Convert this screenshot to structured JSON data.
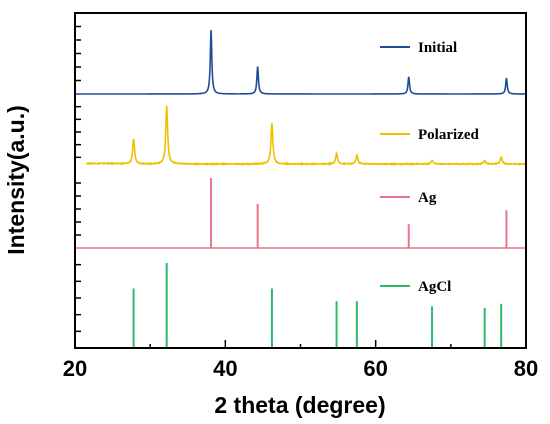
{
  "chart_data": {
    "type": "line",
    "xlabel": "2 theta (degree)",
    "ylabel": "Intensity(a.u.)",
    "xlim": [
      20,
      80
    ],
    "xticks": [
      "20",
      "40",
      "60",
      "80"
    ],
    "legend_placement": "right of each panel",
    "grid": false,
    "panels": [
      {
        "name": "Initial",
        "style": "line",
        "color": "#1f4e96",
        "baseline": 0,
        "peak_range": [
          0,
          1
        ],
        "peaks": [
          {
            "x": 38.1,
            "y": 1.0
          },
          {
            "x": 44.3,
            "y": 0.43
          },
          {
            "x": 64.4,
            "y": 0.27
          },
          {
            "x": 77.4,
            "y": 0.25
          }
        ]
      },
      {
        "name": "Polarized",
        "style": "line",
        "color": "#f0c000",
        "baseline": 0,
        "peak_range": [
          0,
          1
        ],
        "peaks": [
          {
            "x": 27.8,
            "y": 0.42
          },
          {
            "x": 32.2,
            "y": 1.0
          },
          {
            "x": 46.2,
            "y": 0.7
          },
          {
            "x": 54.8,
            "y": 0.18
          },
          {
            "x": 57.5,
            "y": 0.15
          },
          {
            "x": 67.5,
            "y": 0.06
          },
          {
            "x": 74.5,
            "y": 0.06
          },
          {
            "x": 76.7,
            "y": 0.12
          }
        ]
      },
      {
        "name": "Ag",
        "style": "stick",
        "color": "#e8758a",
        "peaks": [
          {
            "x": 38.1,
            "y": 1.0
          },
          {
            "x": 44.3,
            "y": 0.63
          },
          {
            "x": 64.4,
            "y": 0.34
          },
          {
            "x": 77.4,
            "y": 0.54
          }
        ]
      },
      {
        "name": "AgCl",
        "style": "stick",
        "color": "#2db86a",
        "peaks": [
          {
            "x": 27.8,
            "y": 0.7
          },
          {
            "x": 32.2,
            "y": 1.0
          },
          {
            "x": 46.2,
            "y": 0.7
          },
          {
            "x": 54.8,
            "y": 0.55
          },
          {
            "x": 57.5,
            "y": 0.55
          },
          {
            "x": 67.5,
            "y": 0.49
          },
          {
            "x": 74.5,
            "y": 0.47
          },
          {
            "x": 76.7,
            "y": 0.52
          }
        ]
      }
    ]
  }
}
